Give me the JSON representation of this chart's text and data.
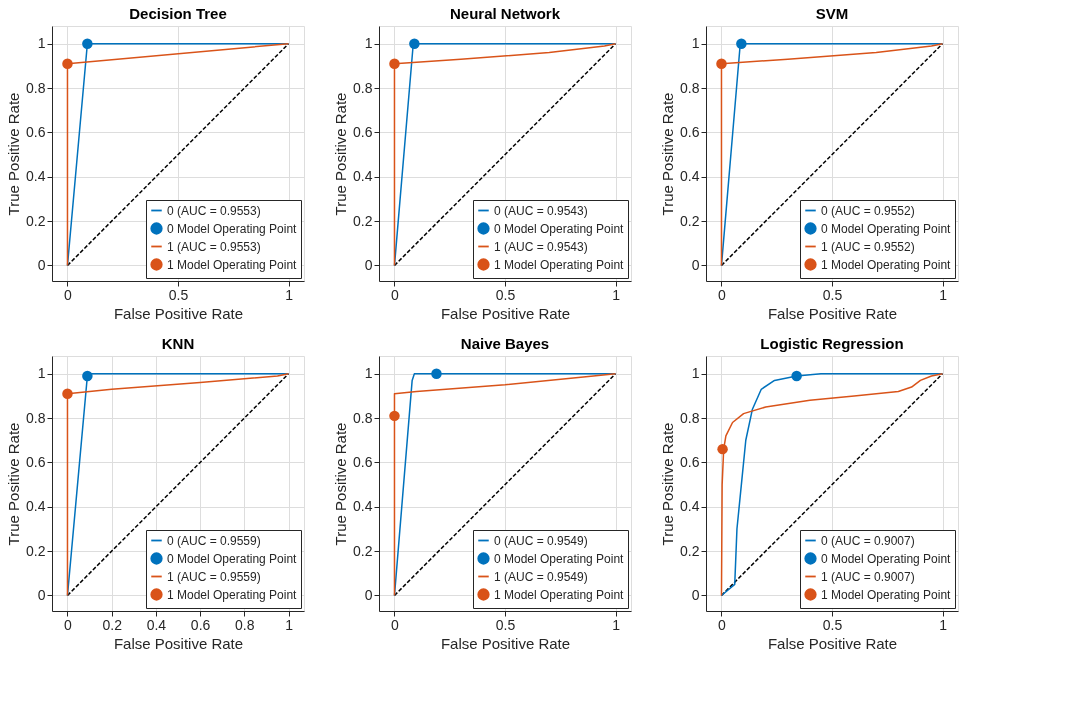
{
  "chart_data": [
    {
      "type": "line",
      "title": "Decision Tree",
      "xlabel": "False Positive Rate",
      "ylabel": "True Positive Rate",
      "xlim": [
        -0.07,
        1.07
      ],
      "ylim": [
        -0.07,
        1.08
      ],
      "xticks": [
        0,
        0.5,
        1
      ],
      "yticks": [
        0,
        0.2,
        0.4,
        0.6,
        0.8,
        1
      ],
      "grid": true,
      "legend": "bottom right",
      "series": [
        {
          "name": "0 (AUC = 0.9553)",
          "color": "#0072bd",
          "line_style": "solid",
          "x": [
            0,
            0.09,
            1
          ],
          "values": [
            0,
            1,
            1
          ]
        },
        {
          "name": "0 Model Operating Point",
          "color": "#0072bd",
          "type": "scatter",
          "marker": "circle",
          "x": [
            0.09
          ],
          "values": [
            1
          ]
        },
        {
          "name": "1 (AUC = 0.9553)",
          "color": "#d95319",
          "line_style": "solid",
          "x": [
            0,
            0,
            1
          ],
          "values": [
            0,
            0.91,
            1
          ]
        },
        {
          "name": "1 Model Operating Point",
          "color": "#d95319",
          "type": "scatter",
          "marker": "circle",
          "x": [
            0
          ],
          "values": [
            0.91
          ]
        },
        {
          "color": "#000000",
          "type": "line",
          "line_style": "dashed",
          "x": [
            0,
            1
          ],
          "values": [
            0,
            1
          ]
        }
      ]
    },
    {
      "type": "line",
      "title": "Neural Network",
      "xlabel": "False Positive Rate",
      "ylabel": "True Positive Rate",
      "xlim": [
        -0.07,
        1.07
      ],
      "ylim": [
        -0.07,
        1.08
      ],
      "xticks": [
        0,
        0.5,
        1
      ],
      "yticks": [
        0,
        0.2,
        0.4,
        0.6,
        0.8,
        1
      ],
      "grid": true,
      "legend": "bottom right",
      "series": [
        {
          "name": "0 (AUC = 0.9543)",
          "color": "#0072bd",
          "line_style": "solid",
          "x": [
            0,
            0.085,
            1
          ],
          "values": [
            0,
            1,
            1
          ]
        },
        {
          "name": "0 Model Operating Point",
          "color": "#0072bd",
          "type": "scatter",
          "marker": "circle",
          "x": [
            0.09
          ],
          "values": [
            1
          ]
        },
        {
          "name": "1 (AUC = 0.9543)",
          "color": "#d95319",
          "line_style": "solid",
          "x": [
            0,
            0,
            0.3,
            0.7,
            0.95,
            1
          ],
          "values": [
            0,
            0.91,
            0.93,
            0.96,
            0.99,
            1
          ]
        },
        {
          "name": "1 Model Operating Point",
          "color": "#d95319",
          "type": "scatter",
          "marker": "circle",
          "x": [
            0
          ],
          "values": [
            0.91
          ]
        },
        {
          "color": "#000000",
          "type": "line",
          "line_style": "dashed",
          "x": [
            0,
            1
          ],
          "values": [
            0,
            1
          ]
        }
      ]
    },
    {
      "type": "line",
      "title": "SVM",
      "xlabel": "False Positive Rate",
      "ylabel": "True Positive Rate",
      "xlim": [
        -0.07,
        1.07
      ],
      "ylim": [
        -0.07,
        1.08
      ],
      "xticks": [
        0,
        0.5,
        1
      ],
      "yticks": [
        0,
        0.2,
        0.4,
        0.6,
        0.8,
        1
      ],
      "grid": true,
      "legend": "bottom right",
      "series": [
        {
          "name": "0 (AUC = 0.9552)",
          "color": "#0072bd",
          "line_style": "solid",
          "x": [
            0,
            0.085,
            1
          ],
          "values": [
            0,
            1,
            1
          ]
        },
        {
          "name": "0 Model Operating Point",
          "color": "#0072bd",
          "type": "scatter",
          "marker": "circle",
          "x": [
            0.09
          ],
          "values": [
            1
          ]
        },
        {
          "name": "1 (AUC = 0.9552)",
          "color": "#d95319",
          "line_style": "solid",
          "x": [
            0,
            0,
            0.3,
            0.7,
            0.95,
            1
          ],
          "values": [
            0,
            0.91,
            0.93,
            0.96,
            0.99,
            1
          ]
        },
        {
          "name": "1 Model Operating Point",
          "color": "#d95319",
          "type": "scatter",
          "marker": "circle",
          "x": [
            0
          ],
          "values": [
            0.91
          ]
        },
        {
          "color": "#000000",
          "type": "line",
          "line_style": "dashed",
          "x": [
            0,
            1
          ],
          "values": [
            0,
            1
          ]
        }
      ]
    },
    {
      "type": "line",
      "title": "KNN",
      "xlabel": "False Positive Rate",
      "ylabel": "True Positive Rate",
      "xlim": [
        -0.07,
        1.07
      ],
      "ylim": [
        -0.07,
        1.08
      ],
      "xticks": [
        0,
        0.2,
        0.4,
        0.6,
        0.8,
        1
      ],
      "yticks": [
        0,
        0.2,
        0.4,
        0.6,
        0.8,
        1
      ],
      "grid": true,
      "legend": "bottom right",
      "series": [
        {
          "name": "0 (AUC = 0.9559)",
          "color": "#0072bd",
          "line_style": "solid",
          "x": [
            0,
            0.09,
            0.1,
            1
          ],
          "values": [
            0,
            0.99,
            1,
            1
          ]
        },
        {
          "name": "0 Model Operating Point",
          "color": "#0072bd",
          "type": "scatter",
          "marker": "circle",
          "x": [
            0.09
          ],
          "values": [
            0.99
          ]
        },
        {
          "name": "1 (AUC = 0.9559)",
          "color": "#d95319",
          "line_style": "solid",
          "x": [
            0,
            0,
            0.2,
            0.6,
            0.95,
            1
          ],
          "values": [
            0,
            0.91,
            0.93,
            0.96,
            0.99,
            1
          ]
        },
        {
          "name": "1 Model Operating Point",
          "color": "#d95319",
          "type": "scatter",
          "marker": "circle",
          "x": [
            0
          ],
          "values": [
            0.91
          ]
        },
        {
          "color": "#000000",
          "type": "line",
          "line_style": "dashed",
          "x": [
            0,
            1
          ],
          "values": [
            0,
            1
          ]
        }
      ]
    },
    {
      "type": "line",
      "title": "Naive Bayes",
      "xlabel": "False Positive Rate",
      "ylabel": "True Positive Rate",
      "xlim": [
        -0.07,
        1.07
      ],
      "ylim": [
        -0.07,
        1.08
      ],
      "xticks": [
        0,
        0.5,
        1
      ],
      "yticks": [
        0,
        0.2,
        0.4,
        0.6,
        0.8,
        1
      ],
      "grid": true,
      "legend": "bottom right",
      "series": [
        {
          "name": "0 (AUC = 0.9549)",
          "color": "#0072bd",
          "line_style": "solid",
          "x": [
            0,
            0.08,
            0.09,
            1
          ],
          "values": [
            0,
            0.97,
            1,
            1
          ]
        },
        {
          "name": "0 Model Operating Point",
          "color": "#0072bd",
          "type": "scatter",
          "marker": "circle",
          "x": [
            0.19
          ],
          "values": [
            1
          ]
        },
        {
          "name": "1 (AUC = 0.9549)",
          "color": "#d95319",
          "line_style": "solid",
          "x": [
            0,
            0,
            0.1,
            0.5,
            0.9,
            1
          ],
          "values": [
            0,
            0.91,
            0.92,
            0.95,
            0.99,
            1
          ]
        },
        {
          "name": "1 Model Operating Point",
          "color": "#d95319",
          "type": "scatter",
          "marker": "circle",
          "x": [
            0
          ],
          "values": [
            0.81
          ]
        },
        {
          "color": "#000000",
          "type": "line",
          "line_style": "dashed",
          "x": [
            0,
            1
          ],
          "values": [
            0,
            1
          ]
        }
      ]
    },
    {
      "type": "line",
      "title": "Logistic Regression",
      "xlabel": "False Positive Rate",
      "ylabel": "True Positive Rate",
      "xlim": [
        -0.07,
        1.07
      ],
      "ylim": [
        -0.07,
        1.08
      ],
      "xticks": [
        0,
        0.5,
        1
      ],
      "yticks": [
        0,
        0.2,
        0.4,
        0.6,
        0.8,
        1
      ],
      "grid": true,
      "legend": "bottom right",
      "series": [
        {
          "name": "0 (AUC = 0.9007)",
          "color": "#0072bd",
          "line_style": "solid",
          "x": [
            0,
            0.06,
            0.07,
            0.09,
            0.11,
            0.14,
            0.18,
            0.24,
            0.34,
            0.45,
            1
          ],
          "values": [
            0,
            0.05,
            0.3,
            0.5,
            0.7,
            0.84,
            0.93,
            0.97,
            0.99,
            1,
            1
          ]
        },
        {
          "name": "0 Model Operating Point",
          "color": "#0072bd",
          "type": "scatter",
          "marker": "circle",
          "x": [
            0.34
          ],
          "values": [
            0.99
          ]
        },
        {
          "name": "1 (AUC = 0.9007)",
          "color": "#d95319",
          "line_style": "solid",
          "x": [
            0,
            0.003,
            0.01,
            0.02,
            0.05,
            0.1,
            0.2,
            0.4,
            0.6,
            0.8,
            0.86,
            0.9,
            0.95,
            1
          ],
          "values": [
            0,
            0.5,
            0.66,
            0.72,
            0.78,
            0.82,
            0.85,
            0.88,
            0.9,
            0.92,
            0.94,
            0.97,
            0.99,
            1
          ]
        },
        {
          "name": "1 Model Operating Point",
          "color": "#d95319",
          "type": "scatter",
          "marker": "circle",
          "x": [
            0.005
          ],
          "values": [
            0.66
          ]
        },
        {
          "color": "#000000",
          "type": "line",
          "line_style": "dashed",
          "x": [
            0,
            1
          ],
          "values": [
            0,
            1
          ]
        }
      ]
    }
  ]
}
